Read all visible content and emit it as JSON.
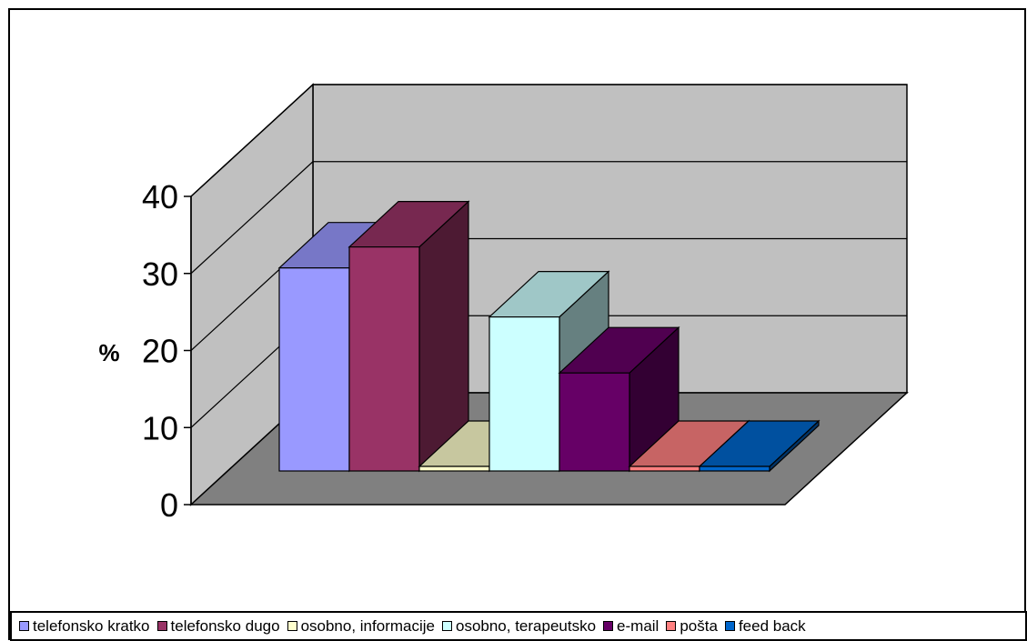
{
  "chart_data": {
    "type": "bar",
    "title": "",
    "xlabel": "",
    "ylabel": "%",
    "ylim": [
      0,
      40
    ],
    "yticks": [
      "0",
      "10",
      "20",
      "30",
      "40"
    ],
    "grid": true,
    "legend_position": "bottom",
    "categories": [
      "telefonsko kratko",
      "telefonsko dugo",
      "osobno, informacije",
      "osobno, terapeutsko",
      "e-mail",
      "pošta",
      "feed back"
    ],
    "values": [
      29,
      32,
      0.5,
      22,
      14,
      0.5,
      0.5
    ],
    "colors": [
      "#9999ff",
      "#993366",
      "#ffffcc",
      "#ccffff",
      "#660066",
      "#ff8080",
      "#0066cc"
    ]
  }
}
